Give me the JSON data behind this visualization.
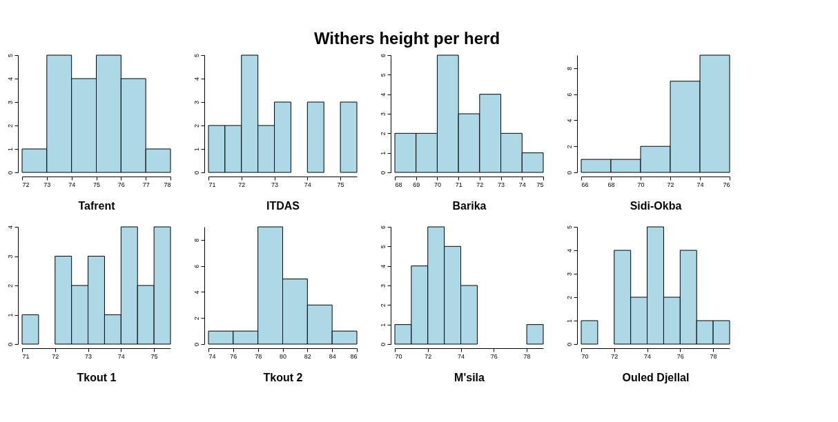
{
  "chart_data": [
    {
      "type": "histogram",
      "xlabel": "Tafrent",
      "bins": [
        72,
        73,
        74,
        75,
        76,
        77,
        78
      ],
      "values": [
        1,
        5,
        4,
        5,
        4,
        1
      ],
      "color": "#add8e6",
      "xlim": [
        72,
        78
      ],
      "xticks": [
        72,
        73,
        74,
        75,
        76,
        77,
        78
      ],
      "ylim": [
        0,
        5
      ],
      "yticks": [
        0,
        1,
        2,
        3,
        4,
        5
      ]
    },
    {
      "type": "histogram",
      "xlabel": "ITDAS",
      "bins": [
        71,
        71.5,
        72,
        72.5,
        73,
        73.5,
        74,
        74.5,
        75,
        75.5
      ],
      "values": [
        2,
        2,
        5,
        2,
        3,
        0,
        3,
        0,
        3
      ],
      "color": "#add8e6",
      "xlim": [
        71,
        75.5
      ],
      "xticks": [
        71,
        72,
        73,
        74,
        75
      ],
      "ylim": [
        0,
        5
      ],
      "yticks": [
        0,
        1,
        2,
        3,
        4,
        5
      ]
    },
    {
      "type": "histogram",
      "title": "Withers height per herd",
      "xlabel": "Barika",
      "bins": [
        68,
        69,
        70,
        71,
        72,
        73,
        74,
        75
      ],
      "values": [
        2,
        2,
        6,
        3,
        4,
        2,
        1
      ],
      "color": "#add8e6",
      "xlim": [
        68,
        75
      ],
      "xticks": [
        68,
        69,
        70,
        71,
        72,
        73,
        74,
        75
      ],
      "ylim": [
        0,
        6
      ],
      "yticks": [
        0,
        1,
        2,
        3,
        4,
        5,
        6
      ]
    },
    {
      "type": "histogram",
      "xlabel": "Sidi-Okba",
      "bins": [
        66,
        68,
        70,
        72,
        74,
        76
      ],
      "values": [
        1,
        1,
        2,
        7,
        9
      ],
      "color": "#add8e6",
      "xlim": [
        66,
        76
      ],
      "xticks": [
        66,
        68,
        70,
        72,
        74,
        76
      ],
      "ylim": [
        0,
        9
      ],
      "yticks": [
        0,
        2,
        4,
        6,
        8
      ]
    },
    {
      "type": "histogram",
      "xlabel": "Tkout 1",
      "bins": [
        71,
        71.5,
        72,
        72.5,
        73,
        73.5,
        74,
        74.5,
        75,
        75.5
      ],
      "values": [
        1,
        0,
        3,
        2,
        3,
        1,
        4,
        2,
        4
      ],
      "color": "#add8e6",
      "xlim": [
        71,
        75.5
      ],
      "xticks": [
        71,
        72,
        73,
        74,
        75
      ],
      "ylim": [
        0,
        4
      ],
      "yticks": [
        0,
        1,
        2,
        3,
        4
      ]
    },
    {
      "type": "histogram",
      "xlabel": "Tkout 2",
      "bins": [
        74,
        76,
        78,
        80,
        82,
        84,
        86
      ],
      "values": [
        1,
        1,
        9,
        5,
        3,
        1
      ],
      "color": "#add8e6",
      "xlim": [
        74,
        86
      ],
      "xticks": [
        74,
        76,
        78,
        80,
        82,
        84,
        86
      ],
      "ylim": [
        0,
        9
      ],
      "yticks": [
        0,
        2,
        4,
        6,
        8
      ]
    },
    {
      "type": "histogram",
      "xlabel": "M'sila",
      "bins": [
        70,
        71,
        72,
        73,
        74,
        75,
        76,
        77,
        78,
        79
      ],
      "values": [
        1,
        4,
        6,
        5,
        3,
        0,
        0,
        0,
        1
      ],
      "color": "#add8e6",
      "xlim": [
        70,
        79
      ],
      "xticks": [
        70,
        72,
        74,
        76,
        78
      ],
      "ylim": [
        0,
        6
      ],
      "yticks": [
        0,
        1,
        2,
        3,
        4,
        5,
        6
      ]
    },
    {
      "type": "histogram",
      "xlabel": "Ouled Djellal",
      "bins": [
        70,
        71,
        72,
        73,
        74,
        75,
        76,
        77,
        78,
        79
      ],
      "values": [
        1,
        0,
        4,
        2,
        5,
        2,
        4,
        1,
        1
      ],
      "color": "#add8e6",
      "xlim": [
        70,
        79
      ],
      "xticks": [
        70,
        72,
        74,
        76,
        78
      ],
      "ylim": [
        0,
        5
      ],
      "yticks": [
        0,
        1,
        2,
        3,
        4,
        5
      ]
    }
  ]
}
